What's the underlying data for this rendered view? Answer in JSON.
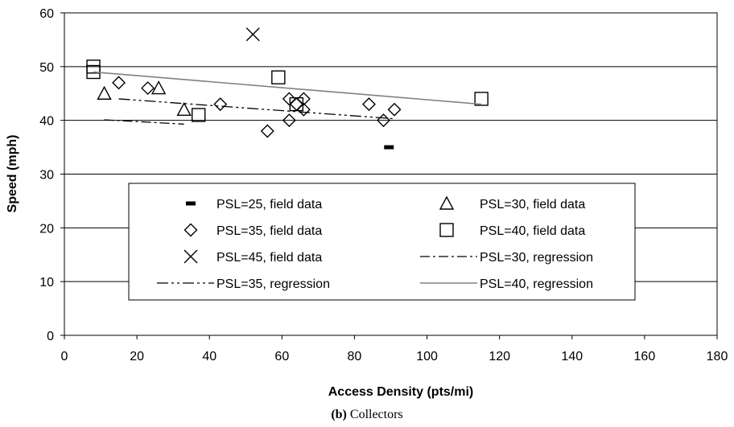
{
  "caption": {
    "letter": "(b)",
    "text": " Collectors"
  },
  "chart_data": {
    "type": "scatter",
    "title": "",
    "xlabel": "Access Density (pts/mi)",
    "ylabel": "Speed (mph)",
    "xlim": [
      0,
      180
    ],
    "ylim": [
      0,
      60
    ],
    "xticks": [
      0,
      20,
      40,
      60,
      80,
      100,
      120,
      140,
      160,
      180
    ],
    "yticks": [
      0,
      10,
      20,
      30,
      40,
      50,
      60
    ],
    "grid": "horizontal",
    "legend_position": "inside-center",
    "series": [
      {
        "name": "PSL=25, field data",
        "kind": "points",
        "marker": "dash",
        "points": [
          [
            89.5,
            35
          ]
        ]
      },
      {
        "name": "PSL=30, field data",
        "kind": "points",
        "marker": "triangle",
        "points": [
          [
            11,
            45
          ],
          [
            26,
            46
          ],
          [
            33,
            42
          ]
        ]
      },
      {
        "name": "PSL=35, field data",
        "kind": "points",
        "marker": "diamond",
        "points": [
          [
            15,
            47
          ],
          [
            23,
            46
          ],
          [
            43,
            43
          ],
          [
            56,
            38
          ],
          [
            62,
            44
          ],
          [
            62,
            40
          ],
          [
            64,
            43
          ],
          [
            66,
            44
          ],
          [
            66,
            42
          ],
          [
            84,
            43
          ],
          [
            88,
            40
          ],
          [
            91,
            42
          ]
        ]
      },
      {
        "name": "PSL=40, field data",
        "kind": "points",
        "marker": "square",
        "points": [
          [
            8,
            50
          ],
          [
            8,
            49
          ],
          [
            37,
            41
          ],
          [
            59,
            48
          ],
          [
            64,
            43
          ],
          [
            115,
            44
          ]
        ]
      },
      {
        "name": "PSL=45, field data",
        "kind": "points",
        "marker": "x",
        "points": [
          [
            52,
            56
          ]
        ]
      },
      {
        "name": "PSL=30, regression",
        "kind": "line",
        "dash": "12 4 3 4",
        "points": [
          [
            11,
            40.1
          ],
          [
            33,
            39.3
          ]
        ]
      },
      {
        "name": "PSL=35, regression",
        "kind": "line",
        "dash": "14 4 3 4 3 4",
        "points": [
          [
            15,
            44
          ],
          [
            91,
            40.3
          ]
        ]
      },
      {
        "name": "PSL=40, regression",
        "kind": "line",
        "dash": "",
        "points": [
          [
            8,
            49
          ],
          [
            115,
            43
          ]
        ]
      }
    ]
  }
}
